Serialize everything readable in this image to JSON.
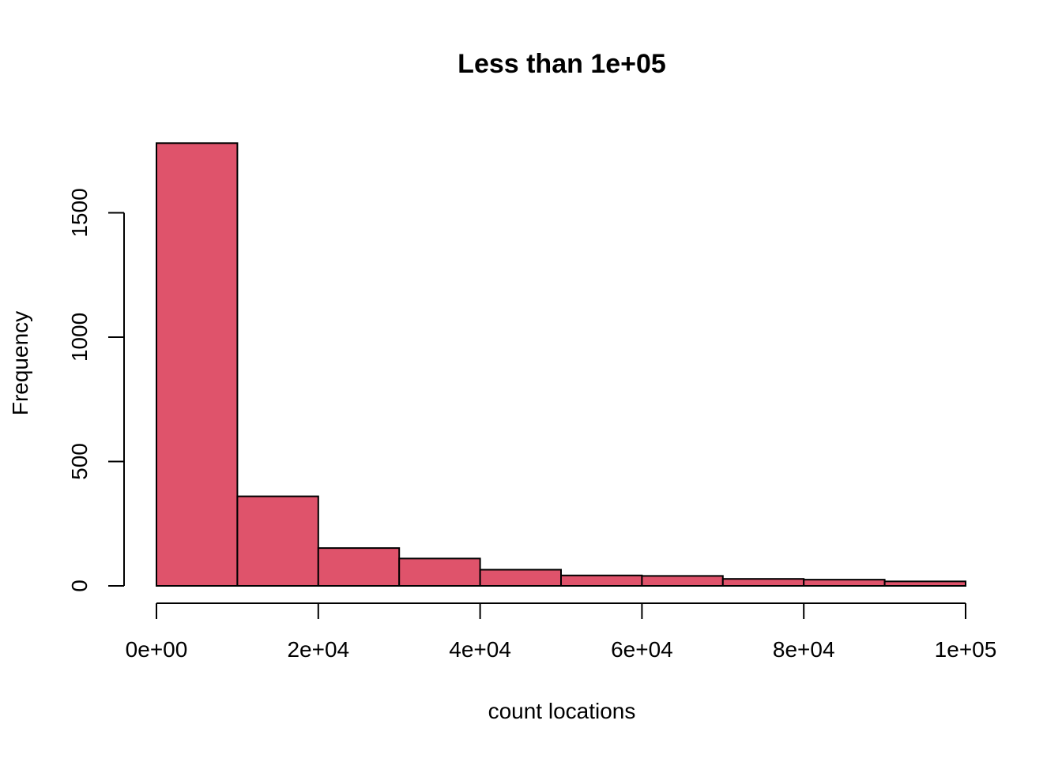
{
  "chart_data": {
    "type": "bar",
    "title": "Less than 1e+05",
    "xlabel": "count locations",
    "ylabel": "Frequency",
    "bins": [
      {
        "start": 0,
        "end": 10000,
        "count": 1780
      },
      {
        "start": 10000,
        "end": 20000,
        "count": 360
      },
      {
        "start": 20000,
        "end": 30000,
        "count": 152
      },
      {
        "start": 30000,
        "end": 40000,
        "count": 110
      },
      {
        "start": 40000,
        "end": 50000,
        "count": 65
      },
      {
        "start": 50000,
        "end": 60000,
        "count": 42
      },
      {
        "start": 60000,
        "end": 70000,
        "count": 40
      },
      {
        "start": 70000,
        "end": 80000,
        "count": 28
      },
      {
        "start": 80000,
        "end": 90000,
        "count": 25
      },
      {
        "start": 90000,
        "end": 100000,
        "count": 18
      }
    ],
    "xlim": [
      0,
      100000
    ],
    "ylim": [
      0,
      1800
    ],
    "x_ticks": [
      {
        "value": 0,
        "label": "0e+00"
      },
      {
        "value": 20000,
        "label": "2e+04"
      },
      {
        "value": 40000,
        "label": "4e+04"
      },
      {
        "value": 60000,
        "label": "6e+04"
      },
      {
        "value": 80000,
        "label": "8e+04"
      },
      {
        "value": 100000,
        "label": "1e+05"
      }
    ],
    "y_ticks": [
      {
        "value": 0,
        "label": "0"
      },
      {
        "value": 500,
        "label": "500"
      },
      {
        "value": 1000,
        "label": "1000"
      },
      {
        "value": 1500,
        "label": "1500"
      }
    ],
    "bar_color": "#DF536B",
    "grid": false
  }
}
